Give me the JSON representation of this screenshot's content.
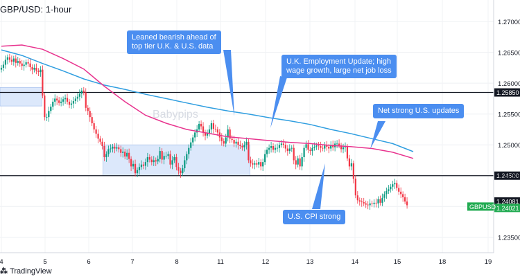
{
  "header": {
    "title": "GBP/USD: 1-hour"
  },
  "footer": {
    "brand": "TradingView"
  },
  "watermark": "Babypips",
  "chart_data": {
    "type": "candlestick",
    "title": "GBP/USD: 1-hour",
    "symbol_tag": "GBPUSD",
    "x_ticks": [
      "4",
      "5",
      "6",
      "7",
      "8",
      "11",
      "12",
      "13",
      "14",
      "15",
      "18",
      "19"
    ],
    "y_ticks": [
      "1.27000",
      "1.26500",
      "1.26000",
      "1.25500",
      "1.25000",
      "1.24500",
      "1.24000",
      "1.23500"
    ],
    "ylim": [
      1.2325,
      1.2735
    ],
    "levels": [
      {
        "label": "1.25850",
        "value": 1.2585
      },
      {
        "label": "1.24500",
        "value": 1.245
      }
    ],
    "price_tags": [
      {
        "label": "1.24081",
        "value": 1.24081
      },
      {
        "label": "1.24021",
        "value": 1.24021
      }
    ],
    "zones": [
      {
        "from": 0,
        "to": 19,
        "low": 1.2563,
        "high": 1.2593
      },
      {
        "from": 50,
        "to": 120,
        "low": 1.245,
        "high": 1.25
      }
    ],
    "ma_fast": [
      [
        0,
        1.2654
      ],
      [
        10,
        1.2645
      ],
      [
        20,
        1.2632
      ],
      [
        30,
        1.262
      ],
      [
        40,
        1.2607
      ],
      [
        50,
        1.2597
      ],
      [
        60,
        1.259
      ],
      [
        70,
        1.2582
      ],
      [
        80,
        1.2575
      ],
      [
        90,
        1.2568
      ],
      [
        100,
        1.2561
      ],
      [
        110,
        1.2555
      ],
      [
        120,
        1.255
      ],
      [
        130,
        1.2544
      ],
      [
        140,
        1.2539
      ],
      [
        150,
        1.2533
      ],
      [
        160,
        1.2525
      ],
      [
        170,
        1.2518
      ],
      [
        180,
        1.251
      ],
      [
        190,
        1.2502
      ],
      [
        200,
        1.2489
      ]
    ],
    "ma_slow": [
      [
        0,
        1.266
      ],
      [
        10,
        1.2662
      ],
      [
        20,
        1.2655
      ],
      [
        30,
        1.264
      ],
      [
        40,
        1.2623
      ],
      [
        50,
        1.2595
      ],
      [
        60,
        1.257
      ],
      [
        70,
        1.2548
      ],
      [
        80,
        1.2535
      ],
      [
        90,
        1.2525
      ],
      [
        100,
        1.2519
      ],
      [
        110,
        1.2513
      ],
      [
        120,
        1.251
      ],
      [
        130,
        1.2507
      ],
      [
        140,
        1.2504
      ],
      [
        150,
        1.2502
      ],
      [
        160,
        1.2499
      ],
      [
        170,
        1.2497
      ],
      [
        180,
        1.2494
      ],
      [
        190,
        1.2488
      ],
      [
        200,
        1.2478
      ]
    ],
    "series": [
      {
        "values": [
          1.2625,
          1.263,
          1.2638,
          1.2642,
          1.2638,
          1.2635,
          1.264,
          1.2633,
          1.2636,
          1.2632,
          1.2628,
          1.263,
          1.2634,
          1.2632,
          1.2626,
          1.2622,
          1.2625,
          1.262,
          1.2618,
          1.2622,
          1.258,
          1.2545,
          1.2545,
          1.2555,
          1.2562,
          1.257,
          1.2575,
          1.2572,
          1.2568,
          1.257,
          1.2574,
          1.2576,
          1.257,
          1.2565,
          1.2567,
          1.2571,
          1.2575,
          1.2578,
          1.2583,
          1.2588,
          1.2585,
          1.256,
          1.2555,
          1.2545,
          1.2535,
          1.2525,
          1.2518,
          1.251,
          1.2505,
          1.2498,
          1.248,
          1.2485,
          1.2493,
          1.2494,
          1.2497,
          1.2494,
          1.2496,
          1.2493,
          1.2487,
          1.2489,
          1.2481,
          1.2487,
          1.2477,
          1.2465,
          1.2469,
          1.2454,
          1.2459,
          1.2464,
          1.2468,
          1.2466,
          1.2472,
          1.248,
          1.2476,
          1.2472,
          1.2475,
          1.2473,
          1.2477,
          1.249,
          1.2476,
          1.2482,
          1.2482,
          1.2485,
          1.2468,
          1.2475,
          1.248,
          1.2464,
          1.2458,
          1.2454,
          1.2462,
          1.2475,
          1.2485,
          1.2495,
          1.2504,
          1.2512,
          1.252,
          1.2525,
          1.2534,
          1.253,
          1.252,
          1.2515,
          1.2519,
          1.2525,
          1.2535,
          1.2526,
          1.2525,
          1.252,
          1.2512,
          1.2506,
          1.2502,
          1.2512,
          1.2525,
          1.251,
          1.2508,
          1.2502,
          1.2505,
          1.25,
          1.2498,
          1.2496,
          1.25,
          1.2505,
          1.2475,
          1.247,
          1.2468,
          1.247,
          1.2468,
          1.2472,
          1.2465,
          1.2472,
          1.2485,
          1.2492,
          1.2495,
          1.2498,
          1.2492,
          1.2495,
          1.2495,
          1.25,
          1.2502,
          1.25,
          1.2494,
          1.249,
          1.2494,
          1.2495,
          1.2475,
          1.2468,
          1.2478,
          1.2465,
          1.248,
          1.2495,
          1.2501,
          1.2492,
          1.249,
          1.2495,
          1.2497,
          1.2499,
          1.2498,
          1.2495,
          1.2494,
          1.2499,
          1.2497,
          1.2494,
          1.25,
          1.2496,
          1.2502,
          1.2502,
          1.2499,
          1.2493,
          1.2496,
          1.2497,
          1.2478,
          1.2465,
          1.247,
          1.2445,
          1.2418,
          1.241,
          1.2408,
          1.2407,
          1.2405,
          1.2403,
          1.2402,
          1.2405,
          1.2404,
          1.2406,
          1.2405,
          1.2412,
          1.2406,
          1.2414,
          1.242,
          1.2425,
          1.2428,
          1.2432,
          1.2436,
          1.2438,
          1.243,
          1.2424,
          1.242,
          1.2415,
          1.2408,
          1.2402
        ]
      }
    ]
  },
  "callouts": [
    {
      "id": "c1",
      "text": "Leaned bearish ahead of\ntop tier U.K. & U.S. data"
    },
    {
      "id": "c2",
      "text": "U.K. Employment Update; high\nwage growth, large net job loss"
    },
    {
      "id": "c3",
      "text": "Net strong U.S. updates"
    },
    {
      "id": "c4",
      "text": "U.S. CPI strong"
    }
  ],
  "colors": {
    "up": "#089981",
    "down": "#f23645",
    "ma_fast": "#2f9ee0",
    "ma_slow": "#e8338e",
    "zone": "#dce8fb",
    "zone_border": "#9bb8ea",
    "callout": "#4b8ef0",
    "tag_dark": "#131722",
    "tag_green": "#22ab52"
  }
}
